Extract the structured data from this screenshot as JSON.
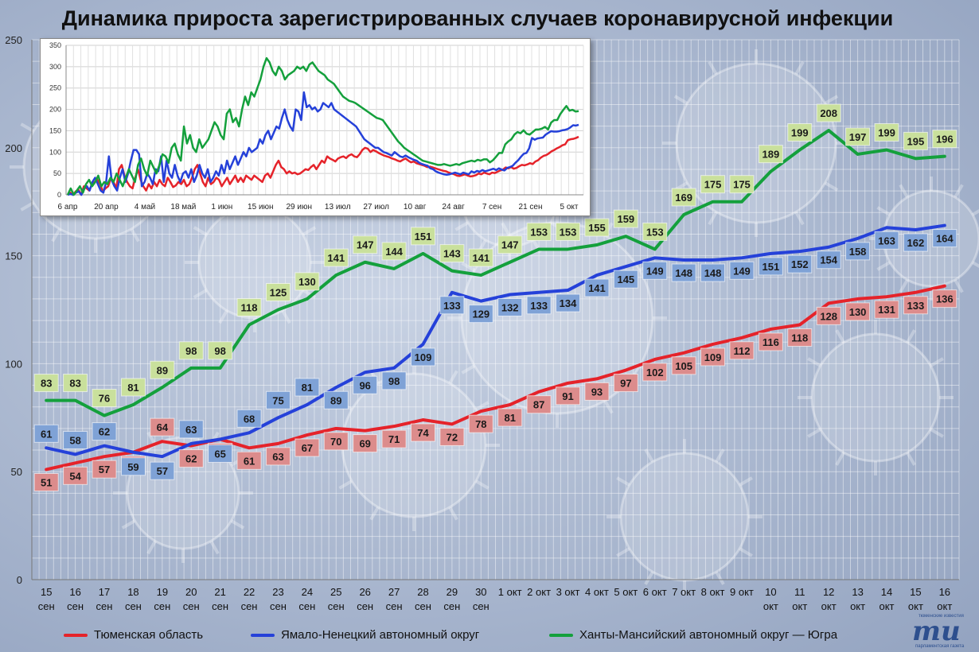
{
  "title": "Динамика прироста зарегистрированных случаев коронавирусной инфекции",
  "colors": {
    "red": "#e5232a",
    "blue": "#2541d9",
    "green": "#14a03c",
    "red_label_bg": "#dc8c8c",
    "blue_label_bg": "#7fa2d6",
    "green_label_bg": "#c9e09c"
  },
  "legend": {
    "red": "Тюменская область",
    "blue": "Ямало-Ненецкий автономный округ",
    "green": "Ханты-Мансийский автономный округ — Югра"
  },
  "logo": {
    "text": "mu",
    "top_caption": "тюменские известия",
    "bottom_caption": "парламентская газета"
  },
  "chart_data": [
    {
      "type": "line",
      "categories": [
        [
          "15",
          "сен"
        ],
        [
          "16",
          "сен"
        ],
        [
          "17",
          "сен"
        ],
        [
          "18",
          "сен"
        ],
        [
          "19",
          "сен"
        ],
        [
          "20",
          "сен"
        ],
        [
          "21",
          "сен"
        ],
        [
          "22",
          "сен"
        ],
        [
          "23",
          "сен"
        ],
        [
          "24",
          "сен"
        ],
        [
          "25",
          "сен"
        ],
        [
          "26",
          "сен"
        ],
        [
          "27",
          "сен"
        ],
        [
          "28",
          "сен"
        ],
        [
          "29",
          "сен"
        ],
        [
          "30",
          "сен"
        ],
        [
          "1 окт"
        ],
        [
          "2 окт"
        ],
        [
          "3 окт"
        ],
        [
          "4 окт"
        ],
        [
          "5 окт"
        ],
        [
          "6 окт"
        ],
        [
          "7 окт"
        ],
        [
          "8 окт"
        ],
        [
          "9 окт"
        ],
        [
          "10",
          "окт"
        ],
        [
          "11",
          "окт"
        ],
        [
          "12",
          "окт"
        ],
        [
          "13",
          "окт"
        ],
        [
          "14",
          "окт"
        ],
        [
          "15",
          "окт"
        ],
        [
          "16",
          "окт"
        ]
      ],
      "ylim": [
        0,
        250
      ],
      "yticks": [
        0,
        50,
        100,
        150,
        200,
        250
      ],
      "grid": true,
      "series": [
        {
          "name": "Тюменская область",
          "color_key": "red",
          "values": [
            51,
            54,
            57,
            59,
            64,
            62,
            65,
            61,
            63,
            67,
            70,
            69,
            71,
            74,
            72,
            78,
            81,
            87,
            91,
            93,
            97,
            102,
            105,
            109,
            112,
            116,
            118,
            128,
            130,
            131,
            133,
            136
          ]
        },
        {
          "name": "Ямало-Ненецкий автономный округ",
          "color_key": "blue",
          "values": [
            61,
            58,
            62,
            59,
            57,
            63,
            65,
            68,
            75,
            81,
            89,
            96,
            98,
            109,
            133,
            129,
            132,
            133,
            134,
            141,
            145,
            149,
            148,
            148,
            149,
            151,
            152,
            154,
            158,
            163,
            162,
            164
          ]
        },
        {
          "name": "Ханты-Мансийский автономный округ — Югра",
          "color_key": "green",
          "values": [
            83,
            83,
            76,
            81,
            89,
            98,
            98,
            118,
            125,
            130,
            141,
            147,
            144,
            151,
            143,
            141,
            147,
            153,
            153,
            155,
            159,
            153,
            169,
            175,
            175,
            189,
            199,
            208,
            197,
            199,
            195,
            196
          ]
        }
      ]
    },
    {
      "type": "line",
      "x_ticks": [
        "6 апр",
        "20 апр",
        "4 май",
        "18 май",
        "1 июн",
        "15 июн",
        "29 июн",
        "13 июл",
        "27 июл",
        "10 авг",
        "24 авг",
        "7 сен",
        "21 сен",
        "5 окт"
      ],
      "ylim": [
        0,
        350
      ],
      "yticks": [
        0,
        50,
        100,
        150,
        200,
        250,
        300,
        350
      ],
      "grid": true,
      "series": [
        {
          "color_key": "red",
          "values": [
            0,
            5,
            0,
            8,
            12,
            0,
            20,
            15,
            10,
            25,
            30,
            35,
            25,
            8,
            15,
            20,
            40,
            30,
            15,
            60,
            70,
            45,
            30,
            20,
            15,
            40,
            60,
            35,
            20,
            10,
            25,
            15,
            30,
            20,
            35,
            25,
            20,
            40,
            30,
            18,
            22,
            30,
            25,
            35,
            20,
            25,
            40,
            60,
            70,
            50,
            30,
            20,
            40,
            25,
            30,
            40,
            35,
            20,
            30,
            40,
            25,
            35,
            45,
            30,
            40,
            30,
            45,
            40,
            35,
            45,
            40,
            35,
            30,
            45,
            50,
            40,
            55,
            70,
            80,
            65,
            60,
            50,
            55,
            50,
            52,
            48,
            50,
            55,
            60,
            58,
            65,
            70,
            60,
            70,
            80,
            75,
            90,
            85,
            82,
            78,
            85,
            88,
            90,
            86,
            92,
            95,
            90,
            88,
            95,
            105,
            110,
            108,
            100,
            105,
            102,
            98,
            95,
            92,
            90,
            88,
            85,
            83,
            80,
            78,
            82,
            85,
            80,
            76,
            78,
            74,
            72,
            70,
            68,
            65,
            66,
            64,
            62,
            60,
            58,
            56,
            55,
            52,
            50,
            48,
            45,
            44,
            46,
            48,
            45,
            43,
            44,
            46,
            50,
            48,
            52,
            50,
            48,
            52,
            51,
            54,
            57,
            59,
            64,
            62,
            65,
            61,
            63,
            67,
            70,
            69,
            71,
            74,
            72,
            78,
            81,
            87,
            91,
            93,
            97,
            102,
            105,
            109,
            112,
            116,
            118,
            128,
            130,
            131,
            133,
            136
          ]
        },
        {
          "color_key": "blue",
          "values": [
            0,
            2,
            0,
            5,
            8,
            0,
            15,
            20,
            10,
            30,
            40,
            25,
            10,
            5,
            30,
            90,
            35,
            20,
            10,
            40,
            60,
            30,
            50,
            80,
            105,
            105,
            95,
            20,
            30,
            50,
            40,
            25,
            60,
            55,
            90,
            30,
            80,
            50,
            40,
            70,
            45,
            30,
            50,
            55,
            40,
            60,
            30,
            45,
            70,
            50,
            40,
            60,
            30,
            40,
            55,
            45,
            70,
            50,
            80,
            60,
            75,
            90,
            70,
            85,
            100,
            90,
            110,
            100,
            105,
            110,
            130,
            120,
            140,
            150,
            130,
            145,
            160,
            155,
            180,
            200,
            175,
            160,
            150,
            200,
            195,
            175,
            240,
            205,
            210,
            200,
            205,
            195,
            200,
            215,
            210,
            205,
            215,
            200,
            195,
            190,
            185,
            180,
            175,
            170,
            165,
            160,
            150,
            140,
            130,
            125,
            120,
            115,
            110,
            110,
            105,
            100,
            98,
            95,
            92,
            100,
            95,
            90,
            88,
            92,
            88,
            85,
            82,
            80,
            75,
            72,
            70,
            68,
            62,
            60,
            55,
            52,
            50,
            48,
            47,
            48,
            50,
            52,
            50,
            48,
            52,
            50,
            48,
            55,
            52,
            56,
            54,
            58,
            55,
            57,
            59,
            61,
            58,
            62,
            59,
            57,
            63,
            65,
            68,
            75,
            81,
            89,
            96,
            98,
            109,
            133,
            129,
            132,
            133,
            134,
            141,
            145,
            149,
            148,
            148,
            149,
            151,
            152,
            154,
            158,
            163,
            162,
            164
          ]
        },
        {
          "color_key": "green",
          "values": [
            0,
            15,
            0,
            10,
            20,
            5,
            25,
            35,
            20,
            30,
            45,
            20,
            30,
            25,
            40,
            30,
            50,
            35,
            20,
            40,
            60,
            45,
            30,
            70,
            85,
            60,
            45,
            80,
            65,
            50,
            70,
            95,
            90,
            75,
            110,
            120,
            95,
            80,
            160,
            120,
            140,
            110,
            100,
            130,
            110,
            120,
            130,
            150,
            170,
            160,
            140,
            130,
            190,
            200,
            170,
            180,
            160,
            200,
            230,
            210,
            240,
            230,
            250,
            270,
            300,
            320,
            310,
            290,
            280,
            300,
            290,
            270,
            280,
            285,
            290,
            300,
            295,
            300,
            290,
            305,
            310,
            300,
            290,
            285,
            280,
            270,
            265,
            260,
            250,
            240,
            230,
            225,
            220,
            218,
            215,
            210,
            205,
            200,
            195,
            190,
            185,
            180,
            178,
            175,
            165,
            155,
            145,
            135,
            125,
            118,
            110,
            105,
            100,
            95,
            90,
            85,
            80,
            78,
            76,
            74,
            72,
            70,
            70,
            72,
            70,
            68,
            70,
            72,
            70,
            74,
            76,
            78,
            80,
            78,
            82,
            80,
            83,
            83,
            76,
            81,
            89,
            98,
            98,
            118,
            125,
            130,
            141,
            147,
            144,
            151,
            143,
            141,
            147,
            153,
            153,
            155,
            159,
            153,
            169,
            175,
            175,
            189,
            199,
            208,
            197,
            199,
            195,
            196
          ]
        }
      ]
    }
  ]
}
